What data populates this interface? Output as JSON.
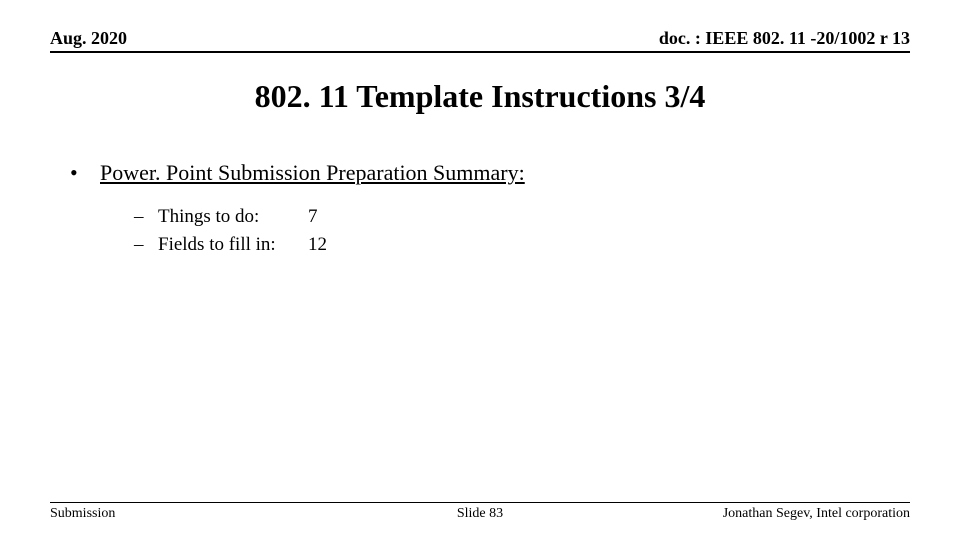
{
  "header": {
    "left": "Aug. 2020",
    "right": "doc. : IEEE 802. 11 -20/1002 r 13"
  },
  "title": "802. 11 Template Instructions 3/4",
  "content": {
    "bullet_mark": "•",
    "bullet_text": "Power. Point Submission Preparation Summary:",
    "sub_dash": "–",
    "items": [
      {
        "label": "Things to do:",
        "value": "7"
      },
      {
        "label": "Fields to fill in:",
        "value": "12"
      }
    ]
  },
  "footer": {
    "left": "Submission",
    "center": "Slide 83",
    "right": "Jonathan Segev, Intel corporation"
  },
  "colors": {
    "background": "#ffffff",
    "text": "#000000",
    "rule": "#000000"
  },
  "typography": {
    "font_family": "Times New Roman",
    "header_fontsize_pt": 18,
    "title_fontsize_pt": 32,
    "bullet_fontsize_pt": 22,
    "sub_fontsize_pt": 19,
    "footer_fontsize_pt": 14
  }
}
